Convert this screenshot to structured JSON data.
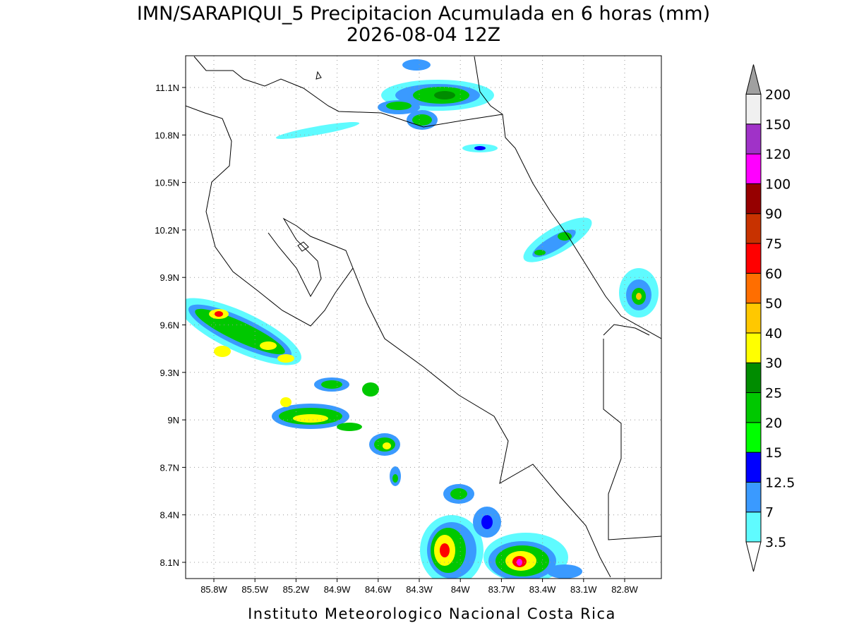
{
  "header": {
    "title": "IMN/SARAPIQUI_5 Precipitacion Acumulada en 6 horas (mm)",
    "subtitle": "2026-08-04 12Z"
  },
  "map": {
    "lat_ticks": [
      "11.1N",
      "10.8N",
      "10.5N",
      "10.2N",
      "9.9N",
      "9.6N",
      "9.3N",
      "9N",
      "8.7N",
      "8.4N",
      "8.1N"
    ],
    "lon_ticks": [
      "85.8W",
      "85.5W",
      "85.2W",
      "84.9W",
      "84.6W",
      "84.3W",
      "84W",
      "83.7W",
      "83.4W",
      "83.1W",
      "82.8W"
    ]
  },
  "colorbar": {
    "levels": [
      3.5,
      7,
      12.5,
      15,
      20,
      25,
      30,
      40,
      50,
      60,
      75,
      90,
      100,
      120,
      150,
      200
    ],
    "colors": [
      "#5ffbff",
      "#3a9aff",
      "#0000ff",
      "#00ff00",
      "#00c800",
      "#008c00",
      "#ffff00",
      "#ffc800",
      "#ff6e00",
      "#ff0000",
      "#c83200",
      "#960000",
      "#ff00ff",
      "#a032c8",
      "#f0f0f0"
    ],
    "below_color": "#ffffff",
    "above_color": "#a0a0a0"
  },
  "footer": {
    "text": "Instituto Meteorologico Nacional Costa Rica"
  }
}
